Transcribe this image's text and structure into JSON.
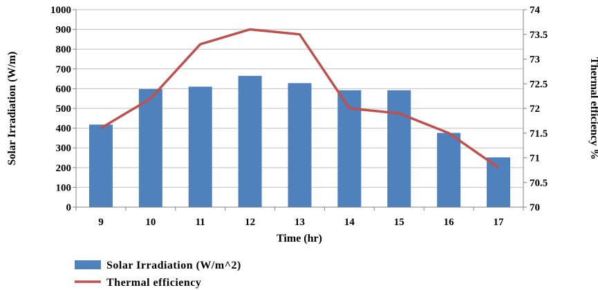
{
  "chart_data": {
    "type": "bar+line",
    "categories": [
      "9",
      "10",
      "11",
      "12",
      "13",
      "14",
      "15",
      "16",
      "17"
    ],
    "series": [
      {
        "name": "Solar Irradiation (W/m^2)",
        "type": "bar",
        "axis": "left",
        "color": "#4F81BD",
        "values": [
          418,
          598,
          610,
          665,
          628,
          592,
          592,
          376,
          252
        ]
      },
      {
        "name": "Thermal efficiency",
        "type": "line",
        "axis": "right",
        "color": "#C0504D",
        "values": [
          71.6,
          72.2,
          73.3,
          73.6,
          73.5,
          72.0,
          71.9,
          71.5,
          70.8
        ]
      }
    ],
    "xlabel": "Time (hr)",
    "ylabel_left": "Solar Irradiation  (W/m)",
    "ylabel_right": "Thermal efficiency %",
    "ylim_left": [
      0,
      1000
    ],
    "yticks_left": [
      "0",
      "100",
      "200",
      "300",
      "400",
      "500",
      "600",
      "700",
      "800",
      "900",
      "1000"
    ],
    "ylim_right": [
      70,
      74
    ],
    "yticks_right": [
      "70",
      "70.5",
      "71",
      "71.5",
      "72",
      "72.5",
      "73",
      "73.5",
      "74"
    ],
    "grid": true,
    "legend": "bottom-left"
  }
}
